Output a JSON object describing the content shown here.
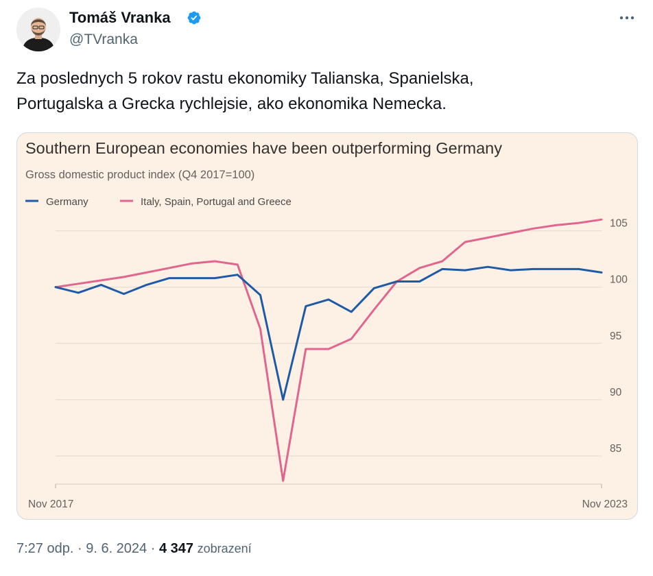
{
  "author": {
    "name": "Tomáš Vranka",
    "handle": "@TVranka"
  },
  "tweet": {
    "lines": [
      "Za poslednych 5 rokov rastu ekonomiky Talianska, Spanielska,",
      "Portugalska a Grecka rychlejsie, ako ekonomika Nemecka."
    ]
  },
  "meta": {
    "time": "7:27 odp.",
    "separator": " · ",
    "date": "9. 6. 2024",
    "views_count": "4 347",
    "views_label": "zobrazení"
  },
  "colors": {
    "verified_blue": "#1d9bf0",
    "chart_background": "#fdf1e5",
    "germany_line": "#1f5aa5",
    "south_line": "#e0658f",
    "gridline": "#e4d8cc"
  },
  "icons": {
    "avatar": "avatar-photo",
    "verified": "verified-badge-icon",
    "more": "more-options-icon"
  },
  "chart_data": {
    "type": "line",
    "title": "Southern European economies have been outperforming Germany",
    "subtitle": "Gross domestic product index (Q4 2017=100)",
    "x_tick_labels": [
      "Nov 2017",
      "Nov 2023"
    ],
    "x": [
      "Q4 2017",
      "Q1 2018",
      "Q2 2018",
      "Q3 2018",
      "Q4 2018",
      "Q1 2019",
      "Q2 2019",
      "Q3 2019",
      "Q4 2019",
      "Q1 2020",
      "Q2 2020",
      "Q3 2020",
      "Q4 2020",
      "Q1 2021",
      "Q2 2021",
      "Q3 2021",
      "Q4 2021",
      "Q1 2022",
      "Q2 2022",
      "Q3 2022",
      "Q4 2022",
      "Q1 2023",
      "Q2 2023",
      "Q3 2023",
      "Q4 2023"
    ],
    "yticks": [
      85,
      90,
      95,
      100,
      105
    ],
    "ylim": [
      82.5,
      106.5
    ],
    "grid": true,
    "legend_position": "top-left",
    "series": [
      {
        "name": "Germany",
        "color": "#1f5aa5",
        "values": [
          100.0,
          99.5,
          100.2,
          99.4,
          100.2,
          100.8,
          100.8,
          100.8,
          101.1,
          99.3,
          90.0,
          98.3,
          98.9,
          97.8,
          99.9,
          100.5,
          100.5,
          101.6,
          101.5,
          101.8,
          101.5,
          101.6,
          101.6,
          101.6,
          101.3
        ]
      },
      {
        "name": "Italy, Spain, Portugal and Greece",
        "color": "#e0658f",
        "values": [
          100.0,
          100.3,
          100.6,
          100.9,
          101.3,
          101.7,
          102.1,
          102.3,
          102.0,
          96.3,
          82.8,
          94.5,
          94.5,
          95.4,
          98.0,
          100.5,
          101.7,
          102.3,
          104.0,
          104.4,
          104.8,
          105.2,
          105.5,
          105.7,
          106.0
        ]
      }
    ]
  }
}
